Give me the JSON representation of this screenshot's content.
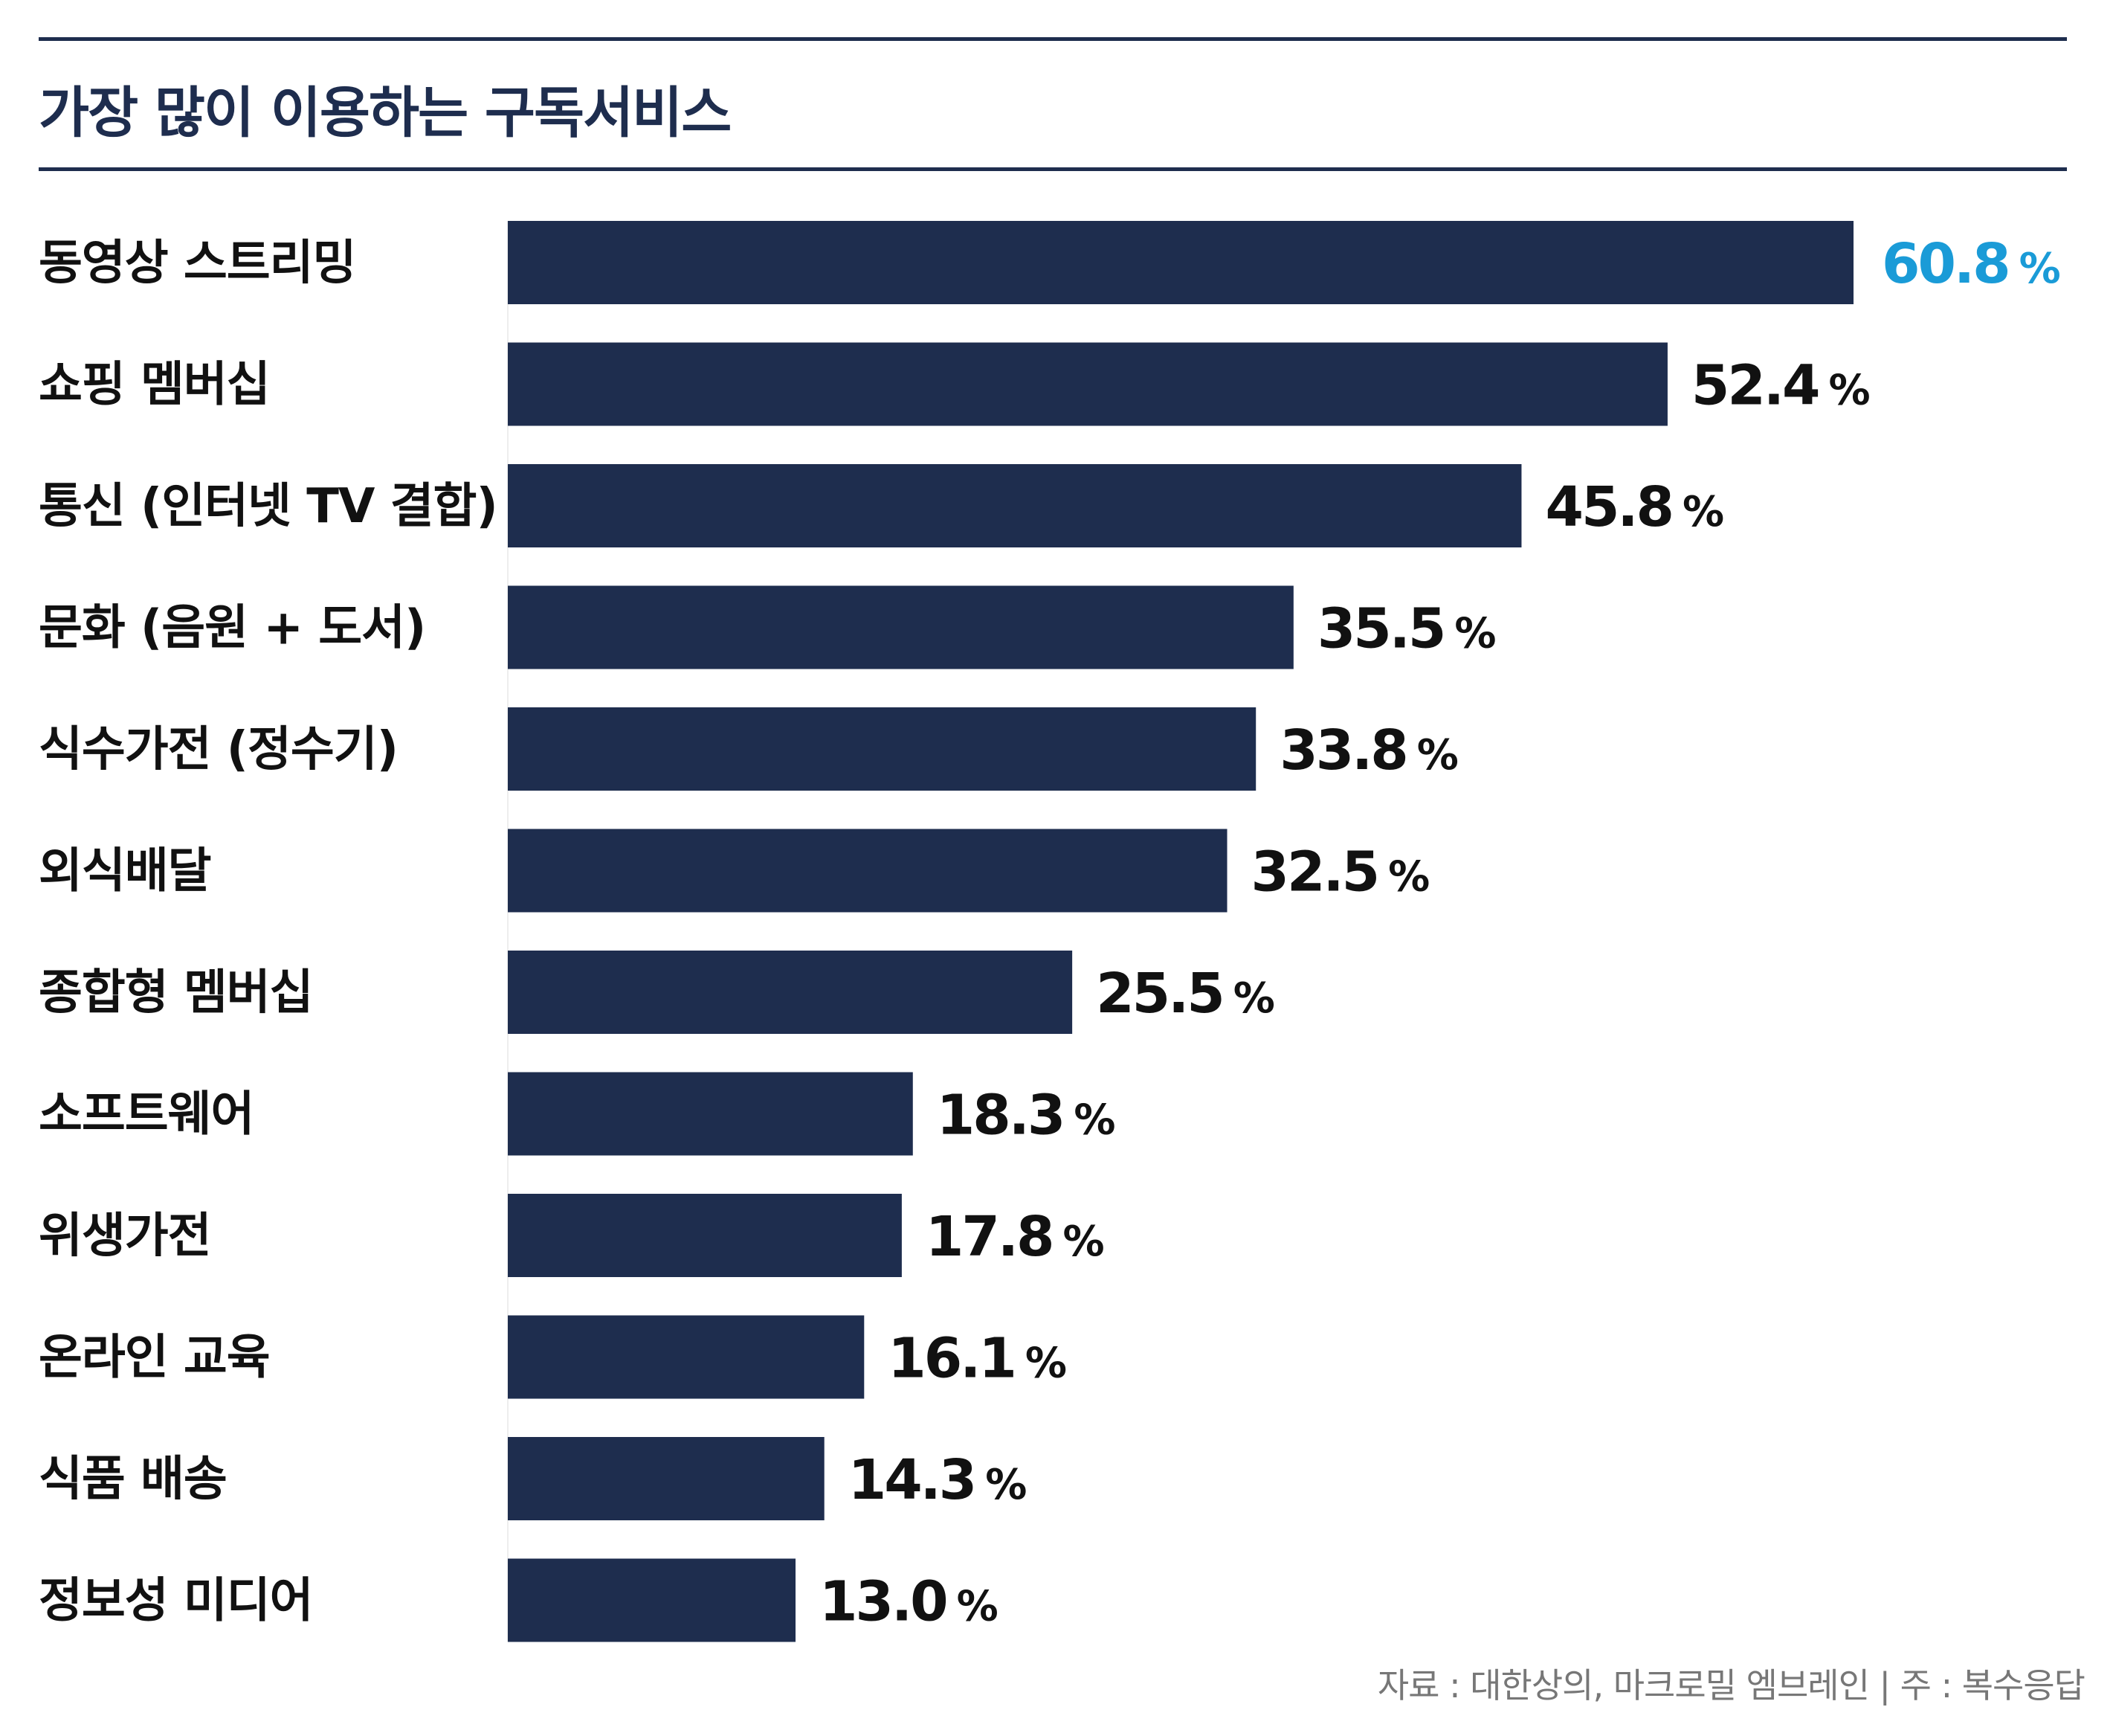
{
  "chart_data": {
    "type": "bar",
    "orientation": "horizontal",
    "title": "가장 많이 이용하는 구독서비스",
    "categories": [
      "동영상 스트리밍",
      "쇼핑 멤버십",
      "통신 (인터넷 TV 결합)",
      "문화 (음원 + 도서)",
      "식수가전 (정수기)",
      "외식배달",
      "종합형 멤버십",
      "소프트웨어",
      "위생가전",
      "온라인 교육",
      "식품 배송",
      "정보성 미디어"
    ],
    "values": [
      60.8,
      52.4,
      45.8,
      35.5,
      33.8,
      32.5,
      25.5,
      18.3,
      17.8,
      16.1,
      14.3,
      13.0
    ],
    "value_labels": [
      "60.8",
      "52.4",
      "45.8",
      "35.5",
      "33.8",
      "32.5",
      "25.5",
      "18.3",
      "17.8",
      "16.1",
      "14.3",
      "13.0"
    ],
    "unit": "%",
    "highlight_index": 0,
    "grid": false,
    "colors": {
      "bar": "#1e2d4e",
      "highlight_label": "#1a9bd7",
      "label": "#111111",
      "rule": "#1e2d4e",
      "source": "#777777"
    }
  },
  "source_note": "자료 : 대한상의, 마크로밀 엠브레인 | 주 : 복수응답"
}
